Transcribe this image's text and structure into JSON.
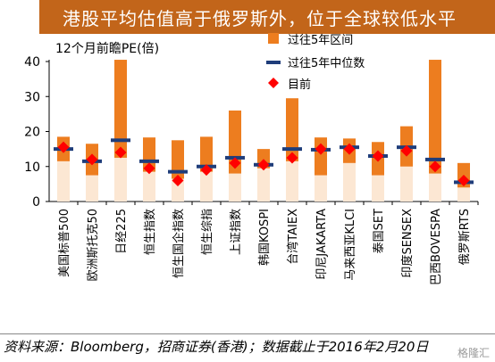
{
  "page": {
    "title": "港股平均估值高于俄罗斯外，位于全球较低水平",
    "source": "资料来源：Bloomberg，招商证券(香港)；数据截止于2016年2月20日",
    "watermark": "格隆汇"
  },
  "colors": {
    "title_bg": "#c2651a",
    "range_bar": "#ed7d1f",
    "median_mark": "#1f3d7a",
    "current_mark": "#ff0000"
  },
  "chart_data": {
    "type": "bar",
    "ylabel": "12个月前瞻PE(倍)",
    "ylim": [
      0,
      40
    ],
    "yticks": [
      0,
      10,
      20,
      30,
      40
    ],
    "legend_position": "top-right",
    "legend": [
      {
        "key": "range",
        "label": "过往5年区间"
      },
      {
        "key": "median",
        "label": "过往5年中位数"
      },
      {
        "key": "current",
        "label": "目前"
      }
    ],
    "categories": [
      "美国标普500",
      "欧洲斯托克50",
      "日经225",
      "恒生指数",
      "恒生国企指数",
      "恒生综指",
      "上证指数",
      "韩国KOSPI",
      "台湾TAIEX",
      "印尼JAKARTA",
      "马来西亚KLCI",
      "泰国SET",
      "印度SENSEX",
      "巴西BOVESPA",
      "俄罗斯RTS"
    ],
    "range_low": [
      11.5,
      7.5,
      12.5,
      8.5,
      6.5,
      8.5,
      8,
      9.5,
      11.5,
      7.5,
      11,
      7.5,
      10,
      8,
      4
    ],
    "range_high": [
      18.5,
      16.5,
      40.5,
      18.3,
      17.5,
      18.5,
      26,
      15,
      29.5,
      18.3,
      18,
      17,
      21.5,
      40.5,
      11
    ],
    "median": [
      15,
      11.5,
      17.5,
      11.5,
      8.5,
      10,
      12.5,
      10.5,
      15,
      14.8,
      15.5,
      13,
      15.5,
      12,
      5.5
    ],
    "current": [
      15.5,
      12,
      14,
      9.5,
      6,
      9,
      11,
      10.5,
      12.5,
      15,
      15,
      13,
      14.5,
      10,
      6
    ]
  }
}
